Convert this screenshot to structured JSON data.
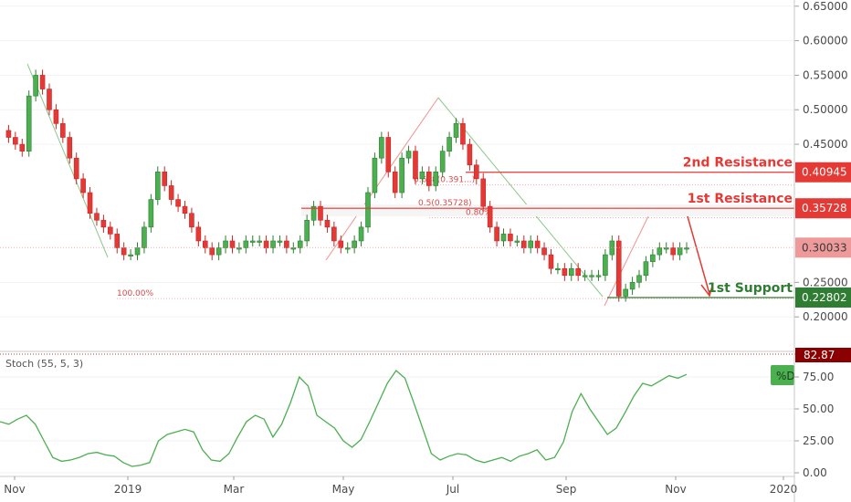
{
  "chart_data": [
    {
      "type": "candlestick",
      "price_axis": {
        "ticks": [
          "0.65000",
          "0.60000",
          "0.55000",
          "0.50000",
          "0.45000",
          "0.25000",
          "0.20000"
        ],
        "tick_values": [
          0.65,
          0.6,
          0.55,
          0.5,
          0.45,
          0.25,
          0.2
        ],
        "range": [
          0.15,
          0.655
        ]
      },
      "time_axis": {
        "labels": [
          "Nov",
          "2019",
          "Mar",
          "May",
          "Jul",
          "Sep",
          "Nov",
          "2020"
        ]
      },
      "levels": [
        {
          "name": "2nd Resistance",
          "value": 0.40945,
          "label": "0.40945",
          "color": "#e53935"
        },
        {
          "name": "1st Resistance",
          "value": 0.35728,
          "label": "0.35728",
          "color": "#e53935"
        },
        {
          "name": "1st Support",
          "value": 0.22802,
          "label": "0.22802",
          "color": "#2e7d32"
        }
      ],
      "current_price": {
        "value": 0.30033,
        "label": "0.30033",
        "color": "#ef9a9a"
      },
      "fibonacci": [
        {
          "label": "0.618(0.391...)",
          "value": 0.391
        },
        {
          "label": "0.5(0.35728)",
          "value": 0.35728
        },
        {
          "label": "0.80%",
          "value": 0.3435
        },
        {
          "label": "100.00%",
          "value": 0.2265
        }
      ],
      "close_series": [
        0.47,
        0.46,
        0.45,
        0.44,
        0.52,
        0.55,
        0.53,
        0.5,
        0.48,
        0.46,
        0.43,
        0.4,
        0.38,
        0.35,
        0.34,
        0.33,
        0.32,
        0.3,
        0.29,
        0.29,
        0.3,
        0.33,
        0.37,
        0.41,
        0.39,
        0.37,
        0.36,
        0.35,
        0.33,
        0.31,
        0.3,
        0.29,
        0.3,
        0.31,
        0.3,
        0.3,
        0.31,
        0.31,
        0.31,
        0.3,
        0.31,
        0.31,
        0.3,
        0.3,
        0.31,
        0.34,
        0.36,
        0.34,
        0.33,
        0.31,
        0.3,
        0.3,
        0.31,
        0.33,
        0.38,
        0.43,
        0.46,
        0.41,
        0.38,
        0.43,
        0.44,
        0.4,
        0.41,
        0.39,
        0.41,
        0.44,
        0.46,
        0.48,
        0.45,
        0.42,
        0.4,
        0.36,
        0.33,
        0.31,
        0.32,
        0.31,
        0.31,
        0.3,
        0.31,
        0.3,
        0.29,
        0.27,
        0.27,
        0.26,
        0.27,
        0.26,
        0.26,
        0.26,
        0.26,
        0.29,
        0.31,
        0.23,
        0.24,
        0.25,
        0.26,
        0.28,
        0.29,
        0.3,
        0.3,
        0.29,
        0.3,
        0.3
      ]
    },
    {
      "type": "line",
      "title": "Stoch (55, 5, 3)",
      "legend": "%D",
      "y_ticks": [
        "75.00",
        "50.00",
        "25.00",
        "0.00"
      ],
      "y_tick_values": [
        75,
        50,
        25,
        0
      ],
      "ylim": [
        0,
        90
      ],
      "overbought": {
        "value": 82.87,
        "label": "82.87"
      },
      "series": [
        {
          "name": "%D",
          "values": [
            40,
            38,
            42,
            45,
            38,
            25,
            12,
            9,
            10,
            12,
            15,
            16,
            14,
            13,
            8,
            5,
            6,
            8,
            25,
            30,
            32,
            34,
            32,
            18,
            10,
            9,
            15,
            28,
            40,
            45,
            42,
            28,
            38,
            55,
            75,
            68,
            45,
            40,
            35,
            25,
            20,
            26,
            40,
            55,
            70,
            80,
            74,
            55,
            35,
            15,
            10,
            13,
            15,
            14,
            10,
            8,
            10,
            12,
            9,
            13,
            15,
            18,
            10,
            12,
            24,
            48,
            62,
            50,
            40,
            30,
            35,
            47,
            60,
            70,
            68,
            72,
            76,
            74,
            77
          ]
        }
      ]
    }
  ]
}
